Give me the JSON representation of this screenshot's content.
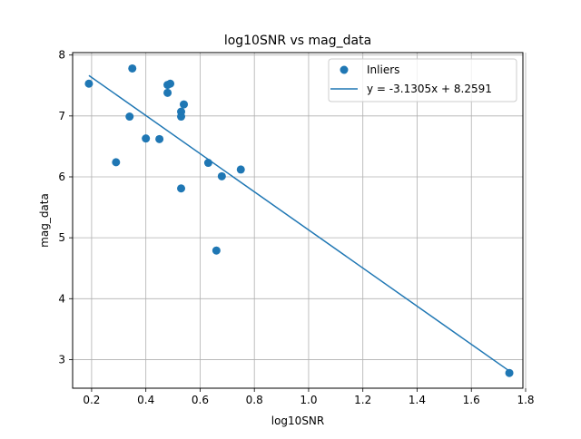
{
  "chart_data": {
    "type": "scatter",
    "title": "log10SNR vs mag_data",
    "xlabel": "log10SNR",
    "ylabel": "mag_data",
    "xlim": [
      0.13,
      1.79
    ],
    "ylim": [
      2.53,
      8.04
    ],
    "xticks": [
      0.2,
      0.4,
      0.6,
      0.8,
      1.0,
      1.2,
      1.4,
      1.6,
      1.8
    ],
    "xtick_labels": [
      "0.2",
      "0.4",
      "0.6",
      "0.8",
      "1.0",
      "1.2",
      "1.4",
      "1.6",
      "1.8"
    ],
    "yticks": [
      3,
      4,
      5,
      6,
      7,
      8
    ],
    "ytick_labels": [
      "3",
      "4",
      "5",
      "6",
      "7",
      "8"
    ],
    "grid": true,
    "legend_position": "top-right",
    "series": [
      {
        "name": "Inliers",
        "kind": "scatter",
        "color": "#1f77b4",
        "points": [
          [
            0.19,
            7.53
          ],
          [
            0.29,
            6.24
          ],
          [
            0.34,
            6.99
          ],
          [
            0.35,
            7.78
          ],
          [
            0.4,
            6.63
          ],
          [
            0.45,
            6.62
          ],
          [
            0.48,
            7.51
          ],
          [
            0.48,
            7.38
          ],
          [
            0.49,
            7.53
          ],
          [
            0.53,
            7.07
          ],
          [
            0.53,
            6.99
          ],
          [
            0.53,
            5.81
          ],
          [
            0.54,
            7.19
          ],
          [
            0.63,
            6.23
          ],
          [
            0.66,
            4.79
          ],
          [
            0.68,
            6.01
          ],
          [
            0.75,
            6.12
          ],
          [
            1.74,
            2.78
          ]
        ]
      },
      {
        "name": "y = -3.1305x + 8.2591",
        "kind": "line",
        "color": "#1f77b4",
        "slope": -3.1305,
        "intercept": 8.2591,
        "x_range": [
          0.19,
          1.74
        ]
      }
    ]
  }
}
